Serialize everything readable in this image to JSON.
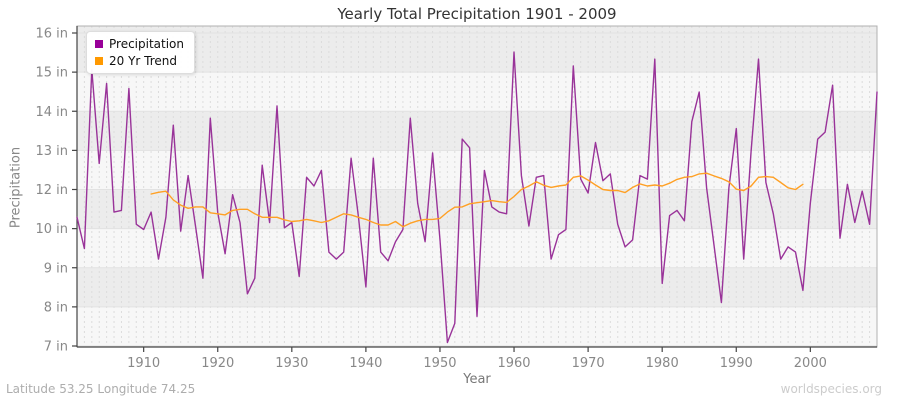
{
  "chart_data": {
    "type": "line",
    "title": "Yearly Total Precipitation 1901 - 2009",
    "xlabel": "Year",
    "ylabel": "Precipitation",
    "xlim": [
      1901,
      2009
    ],
    "ylim": [
      7,
      16
    ],
    "x_ticks": [
      1910,
      1920,
      1930,
      1940,
      1950,
      1960,
      1970,
      1980,
      1990,
      2000
    ],
    "y_tick_values": [
      16,
      14.875,
      13.75,
      12.625,
      11.5,
      10.375,
      9.25,
      8.125,
      7
    ],
    "y_tick_labels": [
      "16 in",
      "15 in",
      "14 in",
      "13 in",
      "12 in",
      "10 in",
      "9 in",
      "8 in",
      "7 in"
    ],
    "grid": "horizontal solid lines, dashed vertical line per year, alternating shaded bands",
    "legend": {
      "position": "top-left",
      "entries": [
        {
          "label": "Precipitation",
          "color": "#990099"
        },
        {
          "label": "20 Yr Trend",
          "color": "#ff9900"
        }
      ]
    },
    "series": [
      {
        "name": "Precipitation",
        "color": "#993399",
        "x_start": 1901,
        "values": [
          10.7,
          9.8,
          14.95,
          12.25,
          14.55,
          10.85,
          10.9,
          14.4,
          10.5,
          10.35,
          10.85,
          9.5,
          10.7,
          13.35,
          10.3,
          11.9,
          10.45,
          8.95,
          13.55,
          10.85,
          9.65,
          11.35,
          10.55,
          8.5,
          8.95,
          12.2,
          10.55,
          13.9,
          10.4,
          10.55,
          9.0,
          11.85,
          11.6,
          12.05,
          9.7,
          9.5,
          9.7,
          12.4,
          10.7,
          8.7,
          12.4,
          9.7,
          9.45,
          10.0,
          10.35,
          13.55,
          11.1,
          10.0,
          12.55,
          10.05,
          7.1,
          7.65,
          12.95,
          12.7,
          7.85,
          12.05,
          11.0,
          10.85,
          10.8,
          15.45,
          11.9,
          10.45,
          11.85,
          11.9,
          9.5,
          10.2,
          10.35,
          15.05,
          11.8,
          11.4,
          12.85,
          11.75,
          11.95,
          10.5,
          9.85,
          10.05,
          11.9,
          11.8,
          15.25,
          8.8,
          10.75,
          10.9,
          10.6,
          13.45,
          14.3,
          11.55,
          9.9,
          8.25,
          11.55,
          13.25,
          9.5,
          12.6,
          15.25,
          11.7,
          10.8,
          9.5,
          9.85,
          9.7,
          8.6,
          11.1,
          12.95,
          13.15,
          14.5,
          10.1,
          11.65,
          10.55,
          11.45,
          10.5,
          14.3
        ]
      },
      {
        "name": "20 Yr Trend",
        "color": "#ffa024",
        "x_start": 1911,
        "values": [
          11.37,
          11.42,
          11.45,
          11.2,
          11.05,
          10.96,
          11.0,
          11.0,
          10.83,
          10.8,
          10.77,
          10.9,
          10.93,
          10.93,
          10.8,
          10.7,
          10.7,
          10.7,
          10.63,
          10.58,
          10.6,
          10.64,
          10.6,
          10.55,
          10.6,
          10.7,
          10.8,
          10.77,
          10.7,
          10.64,
          10.55,
          10.48,
          10.48,
          10.58,
          10.43,
          10.53,
          10.6,
          10.64,
          10.64,
          10.67,
          10.85,
          10.99,
          11.0,
          11.09,
          11.12,
          11.15,
          11.18,
          11.15,
          11.13,
          11.3,
          11.5,
          11.6,
          11.72,
          11.62,
          11.56,
          11.6,
          11.63,
          11.85,
          11.89,
          11.77,
          11.63,
          11.5,
          11.47,
          11.47,
          11.41,
          11.56,
          11.66,
          11.6,
          11.63,
          11.6,
          11.68,
          11.79,
          11.85,
          11.87,
          11.95,
          11.97,
          11.89,
          11.82,
          11.72,
          11.51,
          11.47,
          11.6,
          11.85,
          11.87,
          11.85,
          11.7,
          11.55,
          11.5,
          11.65
        ]
      }
    ]
  },
  "footer": {
    "left": "Latitude 53.25 Longitude 74.25",
    "right": "worldspecies.org"
  }
}
